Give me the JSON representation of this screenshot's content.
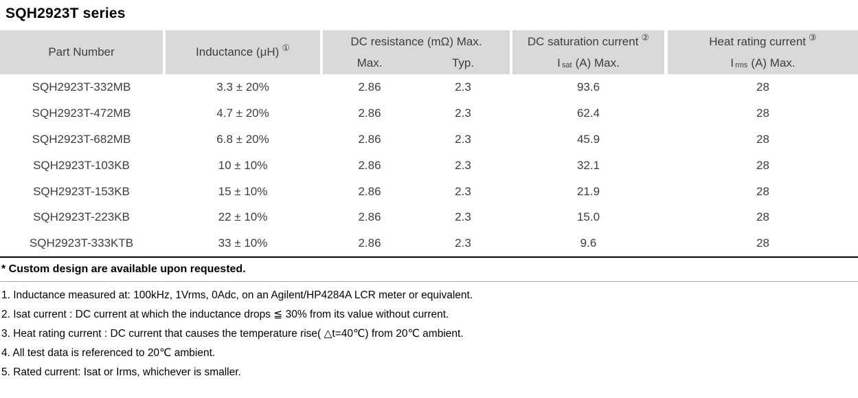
{
  "title": "SQH2923T series",
  "table": {
    "header": {
      "part_number": "Part Number",
      "inductance": "Inductance (μH)",
      "inductance_note": "①",
      "dc_resistance_group": "DC resistance (mΩ) Max.",
      "dc_resistance_max": "Max.",
      "dc_resistance_typ": "Typ.",
      "dc_saturation_group": "DC saturation current",
      "dc_saturation_note": "②",
      "isat_prefix": "I",
      "isat_sub": "sat",
      "isat_rest": "(A)  Max.",
      "heat_rating_group": "Heat rating current",
      "heat_rating_note": "③",
      "irms_prefix": "I",
      "irms_sub": "rms",
      "irms_rest": "(A)  Max."
    },
    "rows": [
      {
        "part": "SQH2923T-332MB",
        "inductance": "3.3 ± 20%",
        "dcr_max": "2.86",
        "dcr_typ": "2.3",
        "isat": "93.6",
        "irms": "28"
      },
      {
        "part": "SQH2923T-472MB",
        "inductance": "4.7 ± 20%",
        "dcr_max": "2.86",
        "dcr_typ": "2.3",
        "isat": "62.4",
        "irms": "28"
      },
      {
        "part": "SQH2923T-682MB",
        "inductance": "6.8 ± 20%",
        "dcr_max": "2.86",
        "dcr_typ": "2.3",
        "isat": "45.9",
        "irms": "28"
      },
      {
        "part": "SQH2923T-103KB",
        "inductance": "10 ± 10%",
        "dcr_max": "2.86",
        "dcr_typ": "2.3",
        "isat": "32.1",
        "irms": "28"
      },
      {
        "part": "SQH2923T-153KB",
        "inductance": "15 ± 10%",
        "dcr_max": "2.86",
        "dcr_typ": "2.3",
        "isat": "21.9",
        "irms": "28"
      },
      {
        "part": "SQH2923T-223KB",
        "inductance": "22 ± 10%",
        "dcr_max": "2.86",
        "dcr_typ": "2.3",
        "isat": "15.0",
        "irms": "28"
      },
      {
        "part": "SQH2923T-333KTB",
        "inductance": "33 ± 10%",
        "dcr_max": "2.86",
        "dcr_typ": "2.3",
        "isat": "9.6",
        "irms": "28"
      }
    ]
  },
  "footnotes": {
    "custom": "* Custom design are available upon requested.",
    "notes": [
      "1. Inductance measured at: 100kHz, 1Vrms, 0Adc, on an Agilent/HP4284A LCR meter or equivalent.",
      "2. Isat current : DC current at which the inductance drops ≦ 30% from its value without current.",
      "3. Heat rating current : DC current that causes the temperature rise( △t=40℃) from 20℃ ambient.",
      "4. All test data is referenced to 20℃ ambient.",
      "5. Rated current: Isat or Irms, whichever is smaller."
    ]
  },
  "colors": {
    "header_bg": "#d9d9d9",
    "table_text": "#3d3d3d",
    "note_text": "#000000"
  }
}
